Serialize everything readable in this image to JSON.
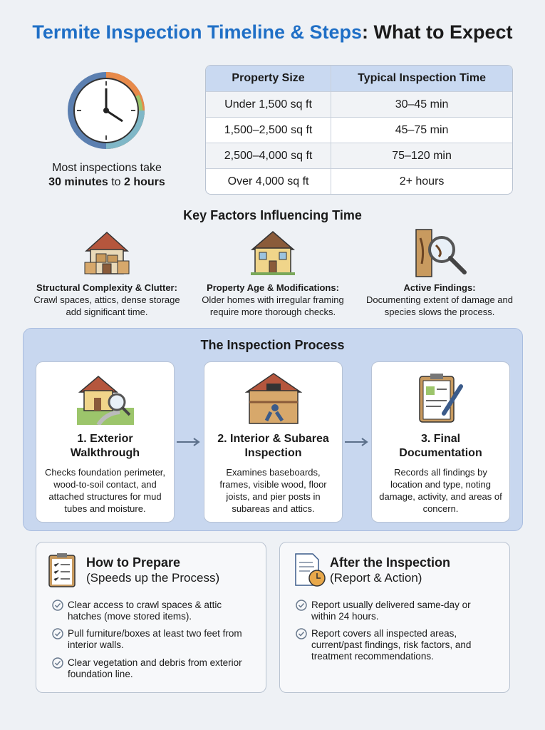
{
  "header": {
    "title_blue": "Termite Inspection Timeline & Steps",
    "title_black": ": What to Expect"
  },
  "duration": {
    "caption": "Most inspections take",
    "from": "30 minutes",
    "joiner": "to",
    "until": "2 hours"
  },
  "table": {
    "headers": [
      "Property Size",
      "Typical Inspection Time"
    ],
    "rows": [
      [
        "Under 1,500 sq ft",
        "30–45 min"
      ],
      [
        "1,500–2,500 sq ft",
        "45–75 min"
      ],
      [
        "2,500–4,000 sq ft",
        "75–120 min"
      ],
      [
        "Over 4,000 sq ft",
        "2+ hours"
      ]
    ]
  },
  "factors": {
    "heading": "Key Factors Influencing Time",
    "items": [
      {
        "title": "Structural Complexity & Clutter:",
        "text": "Crawl spaces, attics, dense storage add significant time."
      },
      {
        "title": "Property Age & Modifications:",
        "text": "Older homes with irregular framing require more thorough checks."
      },
      {
        "title": "Active Findings:",
        "text": "Documenting extent of damage and species slows the process."
      }
    ]
  },
  "process": {
    "heading": "The Inspection Process",
    "steps": [
      {
        "title": "1. Exterior Walkthrough",
        "text": "Checks foundation perimeter, wood-to-soil contact, and attached structures for mud tubes and moisture."
      },
      {
        "title": "2. Interior & Subarea Inspection",
        "text": "Examines baseboards, frames, visible wood, floor joists, and pier posts in subareas and attics."
      },
      {
        "title": "3. Final Documentation",
        "text": "Records all findings by location and type, noting damage, activity, and areas of concern."
      }
    ]
  },
  "prepare": {
    "title": "How to Prepare",
    "subtitle": "(Speeds up the Process)",
    "items": [
      "Clear access to crawl spaces & attic hatches (move stored items).",
      "Pull furniture/boxes at least two feet from interior walls.",
      "Clear vegetation and debris from exterior foundation line."
    ]
  },
  "after": {
    "title": "After the Inspection",
    "subtitle": "(Report & Action)",
    "items": [
      "Report usually delivered same-day or within 24 hours.",
      "Report covers all inspected areas, current/past findings, risk factors, and treatment recommendations."
    ]
  }
}
